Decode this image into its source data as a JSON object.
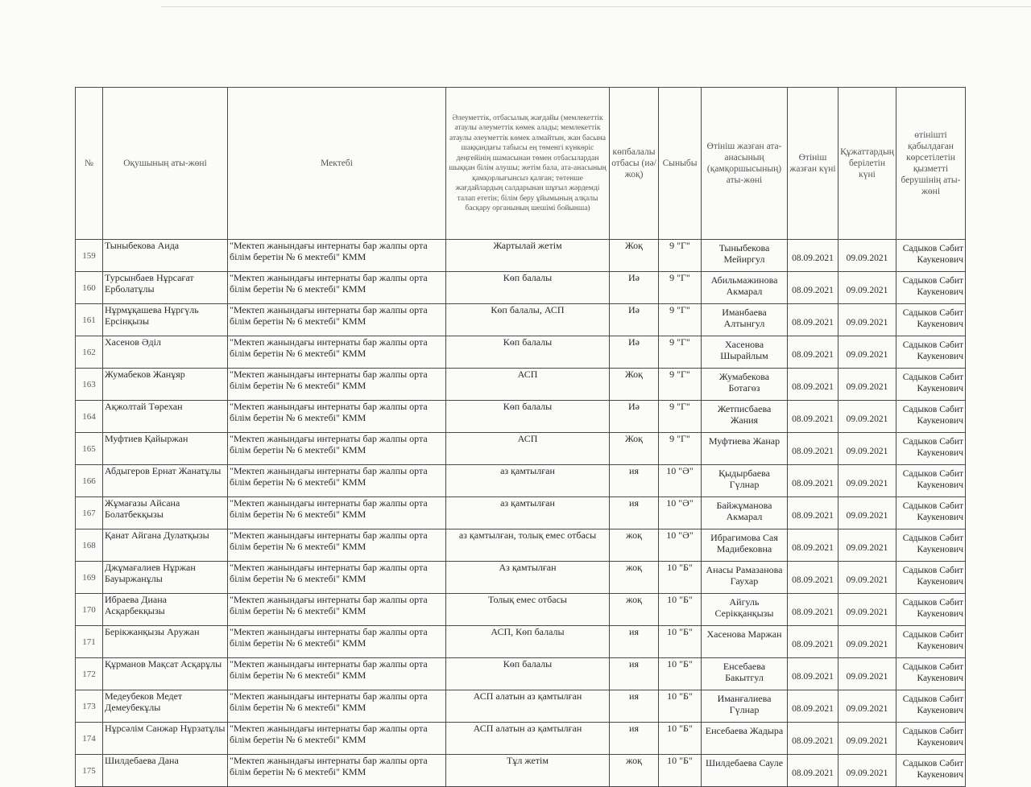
{
  "headers": {
    "num": "№",
    "student": "Оқушының аты-жөні",
    "school": "Мектебі",
    "social": "Әлеуметтік, отбасылық жағдайы (мемлекеттік атаулы әлеуметтік көмек алады;  мемлекеттік атаулы әлеуметтік көмек алмайтын, жан басына шаққандағы табысы ең төменгі күнкөріс деңгейінің шамасынан төмен отбасылардан шыққан білім алушы; жетім бала, ата-анасының қамқорлығынсыз қалған; төтенше жағдайлардың салдарынан шұғыл жәрдемді талап ететін; білім беру ұйымының алқалы басқару органының шешімі бойынша)",
    "large_family": "көпбалалы отбасы (иә/жоқ)",
    "class": "Сыныбы",
    "parent": "Өтініш жазған ата-анасының (қамқоршысының) аты-жөні",
    "app_date": "Өтініш жазған күні",
    "doc_date": "Құжаттардың берілетін күні",
    "acceptor": "өтінішті қабылдаған көрсетілетін қызметті берушінің аты-жөні"
  },
  "rows": [
    {
      "num": "159",
      "student": "Тыныбекова Аида",
      "school": "\"Мектеп жанындағы интернаты бар жалпы орта білім беретін № 6 мектебі\" КММ",
      "social": "Жартылай жетім",
      "large_family": "Жоқ",
      "class": "9 \"Г\"",
      "parent": "Тыныбекова Мейиргул",
      "app_date": "08.09.2021",
      "doc_date": "09.09.2021",
      "acceptor": "Садыков Сәбит Каукенович"
    },
    {
      "num": "160",
      "student": "Турсынбаев Нұрсағат Ерболатұлы",
      "school": "\"Мектеп жанындағы интернаты бар жалпы орта білім беретін № 6 мектебі\" КММ",
      "social": "Көп балалы",
      "large_family": "Иә",
      "class": "9 \"Г\"",
      "parent": "Абильмажинова Акмарал",
      "app_date": "08.09.2021",
      "doc_date": "09.09.2021",
      "acceptor": "Садыков Сәбит Каукенович"
    },
    {
      "num": "161",
      "student": "Нұрмұқашева Нұргүль Ерсінқызы",
      "school": "\"Мектеп жанындағы интернаты бар жалпы орта білім беретін № 6 мектебі\" КММ",
      "social": "Көп балалы, АСП",
      "large_family": "Иә",
      "class": "9 \"Г\"",
      "parent": "Иманбаева Алтынгул",
      "app_date": "08.09.2021",
      "doc_date": "09.09.2021",
      "acceptor": "Садыков Сәбит Каукенович"
    },
    {
      "num": "162",
      "student": "Хасенов Әділ",
      "school": "\"Мектеп жанындағы интернаты бар жалпы орта білім беретін № 6 мектебі\" КММ",
      "social": "Көп балалы",
      "large_family": "Иә",
      "class": "9 \"Г\"",
      "parent": "Хасенова Шырайлым",
      "app_date": "08.09.2021",
      "doc_date": "09.09.2021",
      "acceptor": "Садыков Сәбит Каукенович"
    },
    {
      "num": "163",
      "student": "Жумабеков Жанұяр",
      "school": "\"Мектеп жанындағы интернаты бар жалпы орта білім беретін № 6 мектебі\" КММ",
      "social": "АСП",
      "large_family": "Жоқ",
      "class": "9 \"Г\"",
      "parent": "Жумабекова Ботагөз",
      "app_date": "08.09.2021",
      "doc_date": "09.09.2021",
      "acceptor": "Садыков Сәбит Каукенович"
    },
    {
      "num": "164",
      "student": "Ақжолтай Төрехан",
      "school": "\"Мектеп жанындағы интернаты бар жалпы орта білім беретін № 6 мектебі\" КММ",
      "social": "Көп балалы",
      "large_family": "Иә",
      "class": "9 \"Г\"",
      "parent": "Жетписбаева Жания",
      "app_date": "08.09.2021",
      "doc_date": "09.09.2021",
      "acceptor": "Садыков Сәбит Каукенович"
    },
    {
      "num": "165",
      "student": "Муфтиев Қайыржан",
      "school": "\"Мектеп жанындағы интернаты бар жалпы орта білім беретін № 6 мектебі\" КММ",
      "social": "АСП",
      "large_family": "Жоқ",
      "class": "9 \"Г\"",
      "parent": "Муфтиева Жанар",
      "app_date": "08.09.2021",
      "doc_date": "09.09.2021",
      "acceptor": "Садыков Сәбит Каукенович"
    },
    {
      "num": "166",
      "student": "Абдыгеров Ернат Жанатұлы",
      "school": "\"Мектеп жанындағы интернаты бар жалпы орта білім беретін № 6 мектебі\" КММ",
      "social": "аз қамтылған",
      "large_family": "ия",
      "class": "10 \"Ә\"",
      "parent": "Қыдырбаева Гүлнар",
      "app_date": "08.09.2021",
      "doc_date": "09.09.2021",
      "acceptor": "Садыков Сәбит Каукенович"
    },
    {
      "num": "167",
      "student": "Жұмағазы Айсана Болатбекқызы",
      "school": "\"Мектеп жанындағы интернаты бар жалпы орта білім беретін № 6 мектебі\" КММ",
      "social": "аз қамтылған",
      "large_family": "ия",
      "class": "10 \"Ә\"",
      "parent": "Байжұманова Акмарал",
      "app_date": "08.09.2021",
      "doc_date": "09.09.2021",
      "acceptor": "Садыков Сәбит Каукенович"
    },
    {
      "num": "168",
      "student": "Қанат Айгана Дулатқызы",
      "school": "\"Мектеп жанындағы интернаты бар жалпы орта білім беретін № 6 мектебі\" КММ",
      "social": "аз қамтылған, толық емес отбасы",
      "large_family": "жоқ",
      "class": "10 \"Ә\"",
      "parent": "Ибрагимова Сая Мадибековна",
      "app_date": "08.09.2021",
      "doc_date": "09.09.2021",
      "acceptor": "Садыков Сәбит Каукенович"
    },
    {
      "num": "169",
      "student": "Джұмағалиев Нұржан Бауыржанұлы",
      "school": "\"Мектеп жанындағы интернаты бар жалпы орта білім беретін № 6 мектебі\" КММ",
      "social": "Аз қамтылған",
      "large_family": "жоқ",
      "class": "10 \"Б\"",
      "parent": "Анасы Рамазанова Гаухар",
      "app_date": "08.09.2021",
      "doc_date": "09.09.2021",
      "acceptor": "Садыков Сәбит Каукенович"
    },
    {
      "num": "170",
      "student": "Ибраева Диана Асқарбекқызы",
      "school": "\"Мектеп жанындағы интернаты бар жалпы орта білім беретін № 6 мектебі\" КММ",
      "social": "Толық емес отбасы",
      "large_family": "жоқ",
      "class": "10 \"Б\"",
      "parent": "Айгуль Серікқанқызы",
      "app_date": "08.09.2021",
      "doc_date": "09.09.2021",
      "acceptor": "Садыков Сәбит Каукенович"
    },
    {
      "num": "171",
      "student": "Берікжанқызы Аружан",
      "school": "\"Мектеп жанындағы интернаты бар жалпы орта білім беретін № 6 мектебі\" КММ",
      "social": "АСП, Көп балалы",
      "large_family": "ия",
      "class": "10 \"Б\"",
      "parent": "Хасенова Маржан",
      "app_date": "08.09.2021",
      "doc_date": "09.09.2021",
      "acceptor": "Садыков Сәбит Каукенович"
    },
    {
      "num": "172",
      "student": "Құрманов Мақсат Асқарұлы",
      "school": "\"Мектеп жанындағы интернаты бар жалпы орта білім беретін № 6 мектебі\" КММ",
      "social": "Көп балалы",
      "large_family": "ия",
      "class": "10 \"Б\"",
      "parent": "Енсебаева Бакытгул",
      "app_date": "08.09.2021",
      "doc_date": "09.09.2021",
      "acceptor": "Садыков Сәбит Каукенович"
    },
    {
      "num": "173",
      "student": "Медеубеков Медет Демеубекұлы",
      "school": "\"Мектеп жанындағы интернаты бар жалпы орта білім беретін № 6 мектебі\" КММ",
      "social": "АСП алатын аз қамтылған",
      "large_family": "ия",
      "class": "10 \"Б\"",
      "parent": "Иманғалиева Гүлнар",
      "app_date": "08.09.2021",
      "doc_date": "09.09.2021",
      "acceptor": "Садыков Сәбит Каукенович"
    },
    {
      "num": "174",
      "student": "Нұрсәлім  Санжар Нұрзатұлы",
      "school": "\"Мектеп жанындағы интернаты бар жалпы орта білім беретін № 6 мектебі\" КММ",
      "social": "АСП алатын аз қамтылған",
      "large_family": "ия",
      "class": "10 \"Б\"",
      "parent": "Енсебаева Жадыра",
      "app_date": "08.09.2021",
      "doc_date": "09.09.2021",
      "acceptor": "Садыков Сәбит Каукенович"
    },
    {
      "num": "175",
      "student": "Шилдебаева Дана",
      "school": "\"Мектеп жанындағы интернаты бар жалпы орта білім беретін № 6 мектебі\" КММ",
      "social": "Тұл жетім",
      "large_family": "жоқ",
      "class": "10 \"Б\"",
      "parent": "Шилдебаева Сауле",
      "app_date": "08.09.2021",
      "doc_date": "09.09.2021",
      "acceptor": "Садыков Сәбит Каукенович"
    }
  ]
}
